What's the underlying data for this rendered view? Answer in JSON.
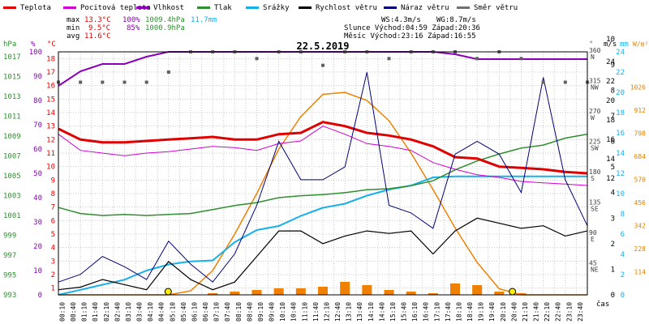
{
  "chart_data": {
    "type": "line",
    "title": "22.5.2019",
    "legend": [
      {
        "name": "Teplota",
        "color": "#e00000"
      },
      {
        "name": "Pocitová teplota",
        "color": "#d000d0"
      },
      {
        "name": "Vlhkost",
        "color": "#8a00b8"
      },
      {
        "name": "Tlak",
        "color": "#2f8f2f"
      },
      {
        "name": "Srážky",
        "color": "#18b0e8"
      },
      {
        "name": "Rychlost větru",
        "color": "#000000"
      },
      {
        "name": "Náraz větru",
        "color": "#00007a"
      },
      {
        "name": "Směr větru",
        "color": "#707070"
      }
    ],
    "stats": {
      "max_label": "max",
      "min_label": "min",
      "avg_label": "avg",
      "max_temp": "13.3°C",
      "max_hum": "100%",
      "max_press": "1009.4hPa",
      "max_rain": "11.7mm",
      "min_temp": "9.5°C",
      "min_hum": "85%",
      "min_press": "1000.9hPa",
      "avg_temp": "11.6°C",
      "ws": "WS:4.3m/s",
      "wg": "WG:8.7m/s",
      "sun": "Slunce Východ:04:59  Západ:20:36",
      "moon": "Měsíc  Východ:23:16  Západ:16:55"
    },
    "axes": {
      "hpa": {
        "unit": "hPa",
        "ticks": [
          "1017",
          "1015",
          "1013",
          "1011",
          "1009",
          "1007",
          "1005",
          "1003",
          "1001",
          "999",
          "997",
          "995",
          "993"
        ]
      },
      "pct": {
        "unit": "%",
        "ticks": [
          "100",
          "90",
          "80",
          "70",
          "60",
          "50",
          "40",
          "30",
          "20",
          "10",
          "0"
        ]
      },
      "degc": {
        "unit": "°C",
        "ticks": [
          "18",
          "17",
          "16",
          "15",
          "14",
          "13",
          "12",
          "11",
          "10",
          "9",
          "8",
          "7",
          "6",
          "5",
          "4",
          "3",
          "2",
          "1"
        ]
      },
      "dir": {
        "unit": "°",
        "ticks": [
          {
            "deg": "360",
            "name": "N"
          },
          {
            "deg": "315",
            "name": "NW"
          },
          {
            "deg": "270",
            "name": "W"
          },
          {
            "deg": "225",
            "name": "SW"
          },
          {
            "deg": "180",
            "name": "S"
          },
          {
            "deg": "135",
            "name": "SE"
          },
          {
            "deg": "90",
            "name": "E"
          },
          {
            "deg": "45",
            "name": "NE"
          }
        ]
      },
      "ms": {
        "unit": "m/s",
        "ticks": [
          "24",
          "22",
          "20",
          "18",
          "16",
          "14",
          "12",
          "10",
          "9",
          "8",
          "7",
          "6",
          "5",
          "4",
          "3",
          "2",
          "1",
          "0"
        ]
      },
      "mm": {
        "unit": "mm",
        "ticks": [
          "24",
          "22",
          "20",
          "18",
          "16",
          "14",
          "12",
          "10",
          "8",
          "6",
          "4",
          "2",
          "0"
        ]
      },
      "wm2": {
        "unit": "W/m²",
        "ticks": [
          "1026",
          "912",
          "798",
          "684",
          "570",
          "456",
          "342",
          "228",
          "114"
        ]
      },
      "time_label": "čas",
      "x_ticks": [
        "00:10",
        "00:40",
        "01:10",
        "01:40",
        "02:10",
        "02:40",
        "03:10",
        "03:40",
        "04:10",
        "04:40",
        "05:10",
        "05:40",
        "06:10",
        "06:40",
        "07:10",
        "07:40",
        "08:10",
        "08:40",
        "09:10",
        "09:40",
        "10:10",
        "10:40",
        "11:10",
        "11:40",
        "12:10",
        "12:40",
        "13:10",
        "13:40",
        "14:10",
        "14:40",
        "15:10",
        "15:40",
        "16:10",
        "16:40",
        "17:10",
        "17:40",
        "18:10",
        "18:40",
        "19:10",
        "19:40",
        "20:10",
        "20:40",
        "21:10",
        "21:40",
        "22:10",
        "22:40",
        "23:10",
        "23:40"
      ]
    },
    "x_hours": [
      0,
      1,
      2,
      3,
      4,
      5,
      6,
      7,
      8,
      9,
      10,
      11,
      12,
      13,
      14,
      15,
      16,
      17,
      18,
      19,
      20,
      21,
      22,
      23,
      24
    ],
    "temperature": [
      12.8,
      12.0,
      11.8,
      11.8,
      11.9,
      12.0,
      12.1,
      12.2,
      12.0,
      12.0,
      12.4,
      12.5,
      13.3,
      13.0,
      12.5,
      12.3,
      12.0,
      11.5,
      10.7,
      10.6,
      10.0,
      9.9,
      9.8,
      9.6,
      9.5
    ],
    "feels_like": [
      12.4,
      11.2,
      11.0,
      10.8,
      11.0,
      11.1,
      11.3,
      11.5,
      11.4,
      11.2,
      11.7,
      11.9,
      13.0,
      12.4,
      11.7,
      11.5,
      11.2,
      10.3,
      9.8,
      9.4,
      9.2,
      8.9,
      8.8,
      8.7,
      8.6
    ],
    "humidity": [
      86,
      92,
      95,
      95,
      98,
      100,
      100,
      100,
      100,
      100,
      100,
      100,
      100,
      100,
      100,
      100,
      100,
      100,
      99,
      97,
      97,
      97,
      97,
      97,
      97
    ],
    "pressure": [
      1001.8,
      1001.2,
      1001.0,
      1001.1,
      1001.0,
      1001.1,
      1001.2,
      1001.6,
      1002.0,
      1002.3,
      1002.8,
      1003.0,
      1003.1,
      1003.3,
      1003.6,
      1003.7,
      1004.0,
      1004.5,
      1005.6,
      1006.5,
      1007.2,
      1007.8,
      1008.1,
      1008.8,
      1009.2
    ],
    "precip_mm": [
      0,
      0.5,
      1.0,
      1.5,
      2.4,
      3.0,
      3.3,
      3.4,
      5.2,
      6.4,
      6.8,
      7.8,
      8.6,
      9.0,
      9.8,
      10.4,
      10.8,
      11.6,
      11.7,
      11.7,
      11.7,
      11.7,
      11.7,
      11.7,
      11.7
    ],
    "wind_ms": [
      0.2,
      0.3,
      0.6,
      0.4,
      0.2,
      1.3,
      0.6,
      0.2,
      0.5,
      1.5,
      2.5,
      2.5,
      2.0,
      2.3,
      2.5,
      2.4,
      2.5,
      1.6,
      2.5,
      3.0,
      2.8,
      2.6,
      2.7,
      2.3,
      2.5
    ],
    "gust_ms": [
      0.5,
      0.8,
      1.5,
      1.1,
      0.6,
      2.1,
      1.2,
      0.5,
      1.6,
      3.5,
      6.0,
      4.5,
      4.5,
      5.0,
      8.7,
      3.5,
      3.2,
      2.6,
      5.5,
      6.0,
      5.5,
      4.0,
      8.5,
      4.5,
      2.7
    ],
    "solar_wm2": [
      0,
      0,
      0,
      0,
      0,
      0,
      20,
      120,
      300,
      500,
      720,
      880,
      990,
      1000,
      960,
      860,
      700,
      520,
      330,
      160,
      30,
      0,
      0,
      0,
      0
    ],
    "precip_rate_bars": [
      0,
      0,
      0,
      0,
      0,
      0,
      0,
      0.1,
      0.2,
      0.3,
      0.4,
      0.4,
      0.5,
      0.8,
      0.6,
      0.3,
      0.2,
      0.1,
      0.7,
      0.6,
      0.2,
      0.1,
      0,
      0,
      0
    ],
    "wind_dir_deg": [
      315,
      315,
      315,
      315,
      315,
      330,
      360,
      360,
      360,
      350,
      360,
      360,
      340,
      360,
      360,
      350,
      360,
      360,
      360,
      350,
      360,
      350,
      315,
      315,
      315
    ],
    "sunrise_hour": 4.98,
    "sunset_hour": 20.6
  }
}
